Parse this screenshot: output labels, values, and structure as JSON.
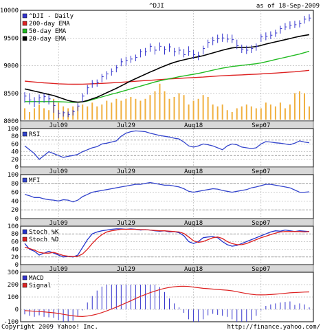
{
  "header": {
    "symbol": "^DJI",
    "as_of": "as of 18-Sep-2009"
  },
  "footer": {
    "copyright": "Copyright 2009 Yahoo! Inc.",
    "url": "http://finance.yahoo.com/"
  },
  "colors": {
    "price": "#3333cc",
    "ema200": "#dd2222",
    "ema50": "#22bb22",
    "ema20": "#000000",
    "volume": "#f0b040",
    "rsi": "#3344cc",
    "mfi": "#3344cc",
    "stoch_k": "#2233cc",
    "stoch_d": "#dd2222",
    "macd": "#3333cc",
    "signal": "#dd2222",
    "grid": "#999999",
    "separator_band": "#d8d8d8"
  },
  "chart_data": [
    {
      "type": "line",
      "panel": "price",
      "ylim": [
        8000,
        10000
      ],
      "yticks": [
        "8000",
        "8500",
        "9000",
        "9500",
        "10000"
      ],
      "x_tick_labels": [
        "Jul09",
        "Jul29",
        "Aug18",
        "Sep07"
      ],
      "x_tick_index": [
        7,
        21,
        35,
        49
      ],
      "legend": [
        "^DJI - Daily",
        "200-day EMA",
        "50-day EMA",
        "20-day EMA"
      ],
      "legend_placement": "top-left",
      "grid": true,
      "series": [
        {
          "name": "^DJI - Daily",
          "style": "hlc",
          "high": [
            8520,
            8500,
            8430,
            8480,
            8500,
            8470,
            8370,
            8200,
            8180,
            8170,
            8200,
            8320,
            8500,
            8650,
            8740,
            8750,
            8850,
            8900,
            8950,
            9010,
            9130,
            9160,
            9180,
            9200,
            9300,
            9320,
            9400,
            9350,
            9420,
            9350,
            9400,
            9320,
            9340,
            9300,
            9350,
            9280,
            9250,
            9360,
            9470,
            9520,
            9560,
            9580,
            9570,
            9560,
            9470,
            9380,
            9360,
            9370,
            9400,
            9570,
            9600,
            9620,
            9650,
            9720,
            9770,
            9800,
            9810,
            9820,
            9900,
            9930
          ],
          "low": [
            8330,
            8300,
            8250,
            8310,
            8330,
            8300,
            8150,
            8050,
            8080,
            8070,
            8100,
            8180,
            8350,
            8480,
            8600,
            8620,
            8700,
            8750,
            8820,
            8880,
            8990,
            9000,
            9050,
            9080,
            9150,
            9180,
            9250,
            9200,
            9270,
            9200,
            9250,
            9170,
            9200,
            9150,
            9180,
            9120,
            9100,
            9200,
            9320,
            9370,
            9410,
            9430,
            9420,
            9410,
            9300,
            9230,
            9210,
            9230,
            9270,
            9430,
            9460,
            9480,
            9520,
            9580,
            9640,
            9660,
            9680,
            9690,
            9760,
            9800
          ],
          "close": [
            8450,
            8380,
            8350,
            8420,
            8440,
            8400,
            8280,
            8140,
            8150,
            8120,
            8170,
            8270,
            8450,
            8600,
            8680,
            8700,
            8800,
            8850,
            8900,
            8960,
            9070,
            9090,
            9120,
            9150,
            9250,
            9250,
            9350,
            9280,
            9350,
            9290,
            9340,
            9250,
            9280,
            9200,
            9260,
            9200,
            9180,
            9310,
            9420,
            9460,
            9490,
            9500,
            9480,
            9470,
            9360,
            9300,
            9280,
            9310,
            9350,
            9520,
            9530,
            9550,
            9590,
            9670,
            9700,
            9730,
            9740,
            9760,
            9840,
            9860
          ]
        },
        {
          "name": "200-day EMA",
          "values": [
            8720,
            8712,
            8704,
            8697,
            8690,
            8684,
            8678,
            8672,
            8668,
            8666,
            8665,
            8665,
            8666,
            8668,
            8672,
            8676,
            8680,
            8684,
            8689,
            8694,
            8700,
            8706,
            8712,
            8718,
            8724,
            8730,
            8736,
            8742,
            8748,
            8754,
            8760,
            8765,
            8770,
            8775,
            8780,
            8785,
            8790,
            8794,
            8800,
            8806,
            8812,
            8818,
            8822,
            8826,
            8830,
            8834,
            8838,
            8842,
            8846,
            8851,
            8856,
            8861,
            8866,
            8872,
            8878,
            8884,
            8890,
            8898,
            8906,
            8915
          ]
        },
        {
          "name": "50-day EMA",
          "values": [
            8350,
            8350,
            8350,
            8350,
            8350,
            8350,
            8350,
            8348,
            8345,
            8340,
            8338,
            8338,
            8345,
            8360,
            8385,
            8410,
            8435,
            8460,
            8485,
            8505,
            8530,
            8555,
            8580,
            8605,
            8630,
            8655,
            8680,
            8705,
            8725,
            8745,
            8765,
            8780,
            8800,
            8815,
            8830,
            8845,
            8860,
            8878,
            8898,
            8918,
            8938,
            8955,
            8970,
            8985,
            8995,
            9005,
            9015,
            9025,
            9035,
            9050,
            9070,
            9090,
            9110,
            9130,
            9150,
            9170,
            9190,
            9210,
            9235,
            9260
          ]
        },
        {
          "name": "20-day EMA",
          "values": [
            8580,
            8560,
            8540,
            8520,
            8500,
            8480,
            8460,
            8430,
            8400,
            8370,
            8350,
            8340,
            8348,
            8370,
            8400,
            8430,
            8470,
            8510,
            8550,
            8590,
            8635,
            8680,
            8725,
            8765,
            8805,
            8845,
            8885,
            8920,
            8960,
            8995,
            9030,
            9060,
            9085,
            9105,
            9125,
            9145,
            9160,
            9180,
            9205,
            9230,
            9255,
            9280,
            9300,
            9320,
            9330,
            9330,
            9330,
            9335,
            9345,
            9365,
            9390,
            9410,
            9430,
            9450,
            9470,
            9490,
            9510,
            9530,
            9545,
            9560
          ]
        }
      ],
      "volume_relative": [
        0.3,
        0.2,
        0.3,
        0.4,
        0.3,
        0.25,
        0.55,
        0.45,
        0.35,
        0.3,
        0.35,
        0.35,
        0.4,
        0.35,
        0.45,
        0.35,
        0.4,
        0.5,
        0.45,
        0.55,
        0.5,
        0.55,
        0.6,
        0.55,
        0.5,
        0.55,
        0.65,
        0.75,
        0.95,
        0.75,
        0.55,
        0.6,
        0.7,
        0.65,
        0.4,
        0.5,
        0.55,
        0.65,
        0.6,
        0.4,
        0.35,
        0.4,
        0.25,
        0.2,
        0.3,
        0.35,
        0.4,
        0.35,
        0.3,
        0.3,
        0.45,
        0.4,
        0.35,
        0.45,
        0.3,
        0.4,
        0.7,
        0.75,
        0.7,
        0.35
      ]
    },
    {
      "type": "line",
      "panel": "rsi",
      "ylim": [
        0,
        100
      ],
      "yticks": [
        "0",
        "20",
        "40",
        "60",
        "80",
        "100"
      ],
      "reference_lines": [
        30,
        70
      ],
      "x_tick_labels": [
        "Jul09",
        "Jul29",
        "Aug18",
        "Sep07"
      ],
      "legend": [
        "RSI"
      ],
      "series": [
        {
          "name": "RSI",
          "values": [
            55,
            45,
            35,
            20,
            30,
            40,
            35,
            30,
            25,
            28,
            30,
            33,
            40,
            45,
            50,
            53,
            60,
            62,
            65,
            68,
            80,
            88,
            92,
            94,
            93,
            92,
            88,
            85,
            82,
            80,
            78,
            75,
            73,
            65,
            55,
            52,
            55,
            60,
            58,
            55,
            50,
            45,
            55,
            60,
            58,
            52,
            50,
            48,
            50,
            60,
            66,
            65,
            63,
            62,
            60,
            58,
            62,
            68,
            65,
            63
          ]
        }
      ]
    },
    {
      "type": "line",
      "panel": "mfi",
      "ylim": [
        0,
        100
      ],
      "yticks": [
        "0",
        "20",
        "40",
        "60",
        "80",
        "100"
      ],
      "reference_lines": [
        20,
        80
      ],
      "x_tick_labels": [
        "Jul09",
        "Jul29",
        "Aug18",
        "Sep07"
      ],
      "legend": [
        "MFI"
      ],
      "series": [
        {
          "name": "MFI",
          "values": [
            55,
            52,
            48,
            48,
            45,
            43,
            42,
            40,
            43,
            42,
            38,
            42,
            50,
            55,
            60,
            62,
            64,
            66,
            68,
            70,
            72,
            74,
            76,
            78,
            78,
            80,
            82,
            80,
            78,
            76,
            76,
            74,
            72,
            68,
            62,
            60,
            62,
            64,
            66,
            68,
            67,
            64,
            62,
            60,
            62,
            64,
            66,
            70,
            72,
            75,
            78,
            78,
            76,
            74,
            72,
            70,
            65,
            60,
            60,
            61
          ]
        }
      ]
    },
    {
      "type": "line",
      "panel": "stoch",
      "ylim": [
        0,
        100
      ],
      "yticks": [
        "0",
        "20",
        "40",
        "60",
        "80",
        "100"
      ],
      "reference_lines": [
        20,
        80
      ],
      "x_tick_labels": [
        "Jul09",
        "Jul29",
        "Aug18",
        "Sep07"
      ],
      "legend": [
        "Stoch %K",
        "Stoch %D"
      ],
      "series": [
        {
          "name": "Stoch %K",
          "values": [
            55,
            40,
            35,
            25,
            30,
            35,
            30,
            25,
            20,
            22,
            20,
            25,
            45,
            65,
            80,
            85,
            88,
            90,
            92,
            93,
            93,
            92,
            93,
            92,
            90,
            91,
            90,
            88,
            87,
            88,
            85,
            86,
            83,
            75,
            60,
            55,
            60,
            70,
            72,
            73,
            70,
            60,
            52,
            48,
            50,
            55,
            60,
            65,
            70,
            75,
            80,
            85,
            88,
            87,
            90,
            88,
            86,
            88,
            87,
            86
          ]
        },
        {
          "name": "Stoch %D",
          "values": [
            45,
            42,
            38,
            32,
            30,
            30,
            32,
            28,
            24,
            22,
            21,
            22,
            28,
            40,
            55,
            68,
            78,
            85,
            88,
            90,
            92,
            92,
            92,
            92,
            91,
            91,
            90,
            89,
            88,
            88,
            87,
            86,
            85,
            81,
            72,
            62,
            58,
            60,
            65,
            70,
            72,
            68,
            60,
            55,
            52,
            52,
            55,
            60,
            65,
            70,
            74,
            78,
            82,
            85,
            86,
            86,
            86,
            86,
            85,
            86
          ]
        }
      ]
    },
    {
      "type": "line",
      "panel": "macd",
      "ylim": [
        -100,
        300
      ],
      "yticks": [
        "-100",
        "0",
        "100",
        "200",
        "300"
      ],
      "x_tick_labels": [
        "Jul09",
        "Jul29",
        "Aug18",
        "Sep07"
      ],
      "legend": [
        "MACD",
        "Signal"
      ],
      "series": [
        {
          "name": "MACD",
          "values": [
            -20,
            -25,
            -30,
            -30,
            -35,
            -40,
            -45,
            -55,
            -65,
            -70,
            -75,
            -70,
            -60,
            -40,
            -20,
            0,
            20,
            40,
            60,
            80,
            100,
            120,
            140,
            160,
            175,
            185,
            195,
            200,
            205,
            205,
            200,
            195,
            190,
            180,
            165,
            155,
            150,
            150,
            155,
            155,
            150,
            145,
            140,
            130,
            115,
            105,
            100,
            100,
            105,
            115,
            125,
            130,
            135,
            140,
            145,
            150,
            145,
            150,
            150,
            145
          ]
        },
        {
          "name": "Signal",
          "values": [
            -10,
            -12,
            -15,
            -18,
            -20,
            -24,
            -28,
            -33,
            -40,
            -46,
            -52,
            -56,
            -58,
            -54,
            -47,
            -38,
            -26,
            -12,
            3,
            18,
            35,
            52,
            70,
            88,
            105,
            120,
            135,
            148,
            160,
            170,
            178,
            183,
            186,
            187,
            185,
            180,
            175,
            170,
            167,
            164,
            161,
            158,
            155,
            150,
            143,
            135,
            128,
            122,
            118,
            117,
            118,
            120,
            123,
            126,
            130,
            134,
            136,
            138,
            140,
            141
          ]
        }
      ]
    }
  ]
}
